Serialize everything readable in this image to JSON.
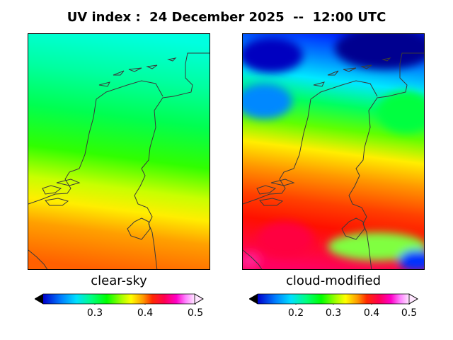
{
  "title": "UV index :  24 December 2025  --  12:00 UTC",
  "panels": [
    {
      "caption": "clear-sky",
      "colorbar_ticks": [
        "0.3",
        "0.4",
        "0.5"
      ],
      "colorbar_range": [
        0.2,
        0.5
      ]
    },
    {
      "caption": "cloud-modified",
      "colorbar_ticks": [
        "0.2",
        "0.3",
        "0.4",
        "0.5"
      ],
      "colorbar_range": [
        0.1,
        0.5
      ]
    }
  ],
  "colorbar": {
    "colormap": "gist_ncar-like",
    "stops": [
      "#000000",
      "#0000cc",
      "#0080ff",
      "#00e0ff",
      "#00ff80",
      "#00ff00",
      "#aaff00",
      "#ffff00",
      "#ff9900",
      "#ff2a00",
      "#ff0050",
      "#ff00c8",
      "#ff80ff",
      "#ffe6ff"
    ]
  },
  "colors": {
    "coast_line": "#3a3a3a",
    "frame": "#000000"
  }
}
